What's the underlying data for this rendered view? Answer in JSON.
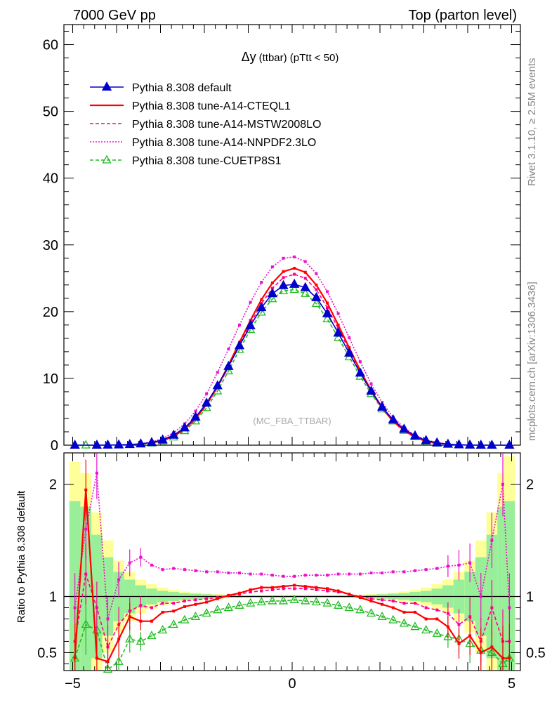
{
  "header": {
    "left": "7000 GeV pp",
    "right": "Top (parton level)"
  },
  "side_labels": {
    "rivet": "Rivet 3.1.10, ≥ 2.5M events",
    "mcplots": "mcplots.cern.ch [arXiv:1306.3436]"
  },
  "chart_data": [
    {
      "type": "line",
      "title": "Δy (ttbar) (pTtt < 50)",
      "title_main": "Δy",
      "title_sub": "(ttbar) (pTtt < 50)",
      "watermark": "(MC_FBA_TTBAR)",
      "xlim": [
        -5.2,
        5.2
      ],
      "ylim": [
        0,
        63
      ],
      "xticks": [
        "−5",
        "0",
        "5"
      ],
      "yticks": [
        "0",
        "10",
        "20",
        "30",
        "40",
        "50",
        "60"
      ],
      "legend_position": "top-left",
      "series": [
        {
          "name": "Pythia 8.308 default",
          "color": "#0000cc",
          "marker": "triangle-filled",
          "x": [
            -4.95,
            -4.45,
            -4.2,
            -3.95,
            -3.7,
            -3.45,
            -3.2,
            -2.95,
            -2.7,
            -2.45,
            -2.2,
            -1.95,
            -1.7,
            -1.45,
            -1.2,
            -0.95,
            -0.7,
            -0.45,
            -0.2,
            0.05,
            0.3,
            0.55,
            0.8,
            1.05,
            1.3,
            1.55,
            1.8,
            2.05,
            2.3,
            2.55,
            2.8,
            3.05,
            3.3,
            3.55,
            3.8,
            4.05,
            4.3,
            4.55,
            4.95
          ],
          "values": [
            0.0,
            0.0,
            0.02,
            0.05,
            0.1,
            0.2,
            0.4,
            0.8,
            1.5,
            2.6,
            4.2,
            6.3,
            8.9,
            11.8,
            14.9,
            17.9,
            20.6,
            22.7,
            23.9,
            24.1,
            23.6,
            22.1,
            19.7,
            16.8,
            13.8,
            10.8,
            8.1,
            5.7,
            3.8,
            2.4,
            1.4,
            0.7,
            0.35,
            0.15,
            0.06,
            0.02,
            0.0,
            0.0,
            0.0
          ]
        },
        {
          "name": "Pythia 8.308 tune-A14-CTEQL1",
          "color": "#ff0000",
          "marker": "none",
          "x": [
            -3.2,
            -2.95,
            -2.7,
            -2.45,
            -2.2,
            -1.95,
            -1.7,
            -1.45,
            -1.2,
            -0.95,
            -0.7,
            -0.45,
            -0.2,
            0.05,
            0.3,
            0.55,
            0.8,
            1.05,
            1.3,
            1.55,
            1.8,
            2.05,
            2.3,
            2.55,
            2.8,
            3.05,
            3.3
          ],
          "values": [
            0.35,
            0.7,
            1.35,
            2.4,
            4.0,
            6.1,
            8.8,
            12.0,
            15.4,
            18.7,
            21.8,
            24.3,
            26.0,
            26.5,
            25.9,
            24.0,
            21.3,
            18.0,
            14.6,
            11.2,
            8.2,
            5.6,
            3.6,
            2.2,
            1.2,
            0.6,
            0.28
          ]
        },
        {
          "name": "Pythia 8.308 tune-A14-MSTW2008LO",
          "color": "#ff0090",
          "marker": "none",
          "x": [
            -3.2,
            -2.95,
            -2.7,
            -2.45,
            -2.2,
            -1.95,
            -1.7,
            -1.45,
            -1.2,
            -0.95,
            -0.7,
            -0.45,
            -0.2,
            0.05,
            0.3,
            0.55,
            0.8,
            1.05,
            1.3,
            1.55,
            1.8,
            2.05,
            2.3,
            2.55,
            2.8,
            3.05,
            3.3
          ],
          "values": [
            0.3,
            0.65,
            1.3,
            2.35,
            3.9,
            6.0,
            8.6,
            11.7,
            15.0,
            18.2,
            21.2,
            23.5,
            25.1,
            25.6,
            25.0,
            23.3,
            20.6,
            17.5,
            14.2,
            10.9,
            8.0,
            5.5,
            3.5,
            2.1,
            1.15,
            0.55,
            0.25
          ]
        },
        {
          "name": "Pythia 8.308 tune-A14-NNPDF2.3LO",
          "color": "#ee11cc",
          "marker": "none",
          "x": [
            -3.45,
            -3.2,
            -2.95,
            -2.7,
            -2.45,
            -2.2,
            -1.95,
            -1.7,
            -1.45,
            -1.2,
            -0.95,
            -0.7,
            -0.45,
            -0.2,
            0.05,
            0.3,
            0.55,
            0.8,
            1.05,
            1.3,
            1.55,
            1.8,
            2.05,
            2.3,
            2.55,
            2.8,
            3.05,
            3.3,
            3.55
          ],
          "values": [
            0.22,
            0.5,
            1.0,
            1.85,
            3.2,
            5.1,
            7.7,
            10.9,
            14.4,
            18.0,
            21.4,
            24.4,
            26.7,
            28.0,
            28.2,
            27.5,
            25.7,
            23.0,
            19.7,
            16.1,
            12.5,
            9.2,
            6.4,
            4.2,
            2.6,
            1.5,
            0.8,
            0.4,
            0.18
          ]
        },
        {
          "name": "Pythia 8.308 tune-CUETP8S1",
          "color": "#22bb22",
          "marker": "triangle-open",
          "x": [
            -4.95,
            -4.7,
            -4.45,
            -4.2,
            -3.95,
            -3.7,
            -3.45,
            -3.2,
            -2.95,
            -2.7,
            -2.45,
            -2.2,
            -1.95,
            -1.7,
            -1.45,
            -1.2,
            -0.95,
            -0.7,
            -0.45,
            -0.2,
            0.05,
            0.3,
            0.55,
            0.8,
            1.05,
            1.3,
            1.55,
            1.8,
            2.05,
            2.3,
            2.55,
            2.8,
            3.05,
            3.3,
            3.55,
            3.8,
            4.05,
            4.3,
            4.55,
            4.95
          ],
          "values": [
            0.0,
            0.0,
            0.0,
            0.01,
            0.03,
            0.07,
            0.15,
            0.3,
            0.62,
            1.2,
            2.15,
            3.6,
            5.6,
            8.1,
            11.1,
            14.3,
            17.3,
            19.9,
            21.9,
            23.1,
            23.3,
            22.7,
            21.2,
            18.9,
            16.1,
            13.2,
            10.3,
            7.7,
            5.4,
            3.6,
            2.2,
            1.25,
            0.6,
            0.28,
            0.12,
            0.05,
            0.02,
            0.0,
            0.0,
            0.0
          ]
        }
      ]
    },
    {
      "type": "line",
      "ylabel": "Ratio to Pythia 8.308 default",
      "xlim": [
        -5.2,
        5.2
      ],
      "ylim": [
        0.34,
        2.28
      ],
      "xticks": [
        "−5",
        "0",
        "5"
      ],
      "yticks": [
        "0.5",
        "1",
        "2"
      ],
      "series": [
        {
          "name": "Pythia 8.308 tune-A14-CTEQL1",
          "color": "#ff0000",
          "x": [
            -4.95,
            -4.7,
            -4.45,
            -4.2,
            -3.95,
            -3.7,
            -3.45,
            -3.2,
            -2.95,
            -2.7,
            -2.45,
            -2.2,
            -1.95,
            -1.7,
            -1.45,
            -1.2,
            -0.95,
            -0.7,
            -0.45,
            -0.2,
            0.05,
            0.3,
            0.55,
            0.8,
            1.05,
            1.3,
            1.55,
            1.8,
            2.05,
            2.3,
            2.55,
            2.8,
            3.05,
            3.3,
            3.55,
            3.8,
            4.05,
            4.3,
            4.55,
            4.8,
            4.95
          ],
          "values": [
            0.45,
            1.95,
            0.45,
            0.42,
            0.62,
            0.82,
            0.78,
            0.78,
            0.86,
            0.87,
            0.91,
            0.93,
            0.95,
            0.98,
            1.01,
            1.03,
            1.06,
            1.08,
            1.08,
            1.09,
            1.1,
            1.09,
            1.08,
            1.07,
            1.05,
            1.02,
            0.99,
            0.96,
            0.93,
            0.9,
            0.86,
            0.86,
            0.8,
            0.8,
            0.73,
            0.58,
            0.65,
            0.5,
            0.55,
            0.45,
            0.45
          ]
        },
        {
          "name": "Pythia 8.308 tune-A14-MSTW2008LO",
          "color": "#ff0090",
          "x": [
            -4.95,
            -4.7,
            -4.45,
            -4.2,
            -3.95,
            -3.7,
            -3.45,
            -3.2,
            -2.95,
            -2.7,
            -2.45,
            -2.2,
            -1.95,
            -1.7,
            -1.45,
            -1.2,
            -0.95,
            -0.7,
            -0.45,
            -0.2,
            0.05,
            0.3,
            0.55,
            0.8,
            1.05,
            1.3,
            1.55,
            1.8,
            2.05,
            2.3,
            2.55,
            2.8,
            3.05,
            3.3,
            3.55,
            3.8,
            4.05,
            4.3,
            4.55,
            4.8,
            4.95
          ],
          "values": [
            0.6,
            1.2,
            0.9,
            0.55,
            0.75,
            0.87,
            0.92,
            0.9,
            0.94,
            0.94,
            0.96,
            0.97,
            0.98,
            0.99,
            1.01,
            1.02,
            1.04,
            1.05,
            1.06,
            1.07,
            1.07,
            1.07,
            1.06,
            1.05,
            1.04,
            1.02,
            1.0,
            0.98,
            0.97,
            0.96,
            0.94,
            0.94,
            0.9,
            0.88,
            0.85,
            0.75,
            0.82,
            0.6,
            0.9,
            0.6,
            0.6
          ]
        },
        {
          "name": "Pythia 8.308 tune-A14-NNPDF2.3LO",
          "color": "#ee11cc",
          "x": [
            -4.95,
            -4.7,
            -4.45,
            -4.2,
            -3.95,
            -3.7,
            -3.45,
            -3.2,
            -2.95,
            -2.7,
            -2.45,
            -2.2,
            -1.95,
            -1.7,
            -1.45,
            -1.2,
            -0.95,
            -0.7,
            -0.45,
            -0.2,
            0.05,
            0.3,
            0.55,
            0.8,
            1.05,
            1.3,
            1.55,
            1.8,
            2.05,
            2.3,
            2.55,
            2.8,
            3.05,
            3.3,
            3.55,
            3.8,
            4.05,
            4.3,
            4.55,
            4.8,
            4.95
          ],
          "values": [
            0.9,
            1.6,
            2.1,
            0.8,
            1.15,
            1.3,
            1.35,
            1.28,
            1.24,
            1.25,
            1.24,
            1.23,
            1.22,
            1.22,
            1.21,
            1.21,
            1.2,
            1.2,
            1.19,
            1.18,
            1.18,
            1.19,
            1.19,
            1.19,
            1.2,
            1.2,
            1.2,
            1.21,
            1.21,
            1.22,
            1.22,
            1.23,
            1.24,
            1.25,
            1.27,
            1.28,
            1.3,
            1.0,
            1.5,
            2.0,
            0.9
          ]
        },
        {
          "name": "Pythia 8.308 tune-CUETP8S1",
          "color": "#22bb22",
          "x": [
            -4.95,
            -4.7,
            -4.45,
            -4.2,
            -3.95,
            -3.7,
            -3.45,
            -3.2,
            -2.95,
            -2.7,
            -2.45,
            -2.2,
            -1.95,
            -1.7,
            -1.45,
            -1.2,
            -0.95,
            -0.7,
            -0.45,
            -0.2,
            0.05,
            0.3,
            0.55,
            0.8,
            1.05,
            1.3,
            1.55,
            1.8,
            2.05,
            2.3,
            2.55,
            2.8,
            3.05,
            3.3,
            3.55,
            3.8,
            4.05,
            4.3,
            4.55,
            4.8,
            4.95
          ],
          "values": [
            0.45,
            0.75,
            0.7,
            0.35,
            0.42,
            0.62,
            0.6,
            0.65,
            0.7,
            0.75,
            0.79,
            0.82,
            0.85,
            0.88,
            0.9,
            0.92,
            0.94,
            0.95,
            0.96,
            0.96,
            0.97,
            0.96,
            0.95,
            0.94,
            0.92,
            0.9,
            0.88,
            0.85,
            0.82,
            0.79,
            0.76,
            0.73,
            0.7,
            0.67,
            0.64,
            0.62,
            0.58,
            0.52,
            0.5,
            0.4,
            0.45
          ]
        }
      ],
      "uncertainty_band_x": [
        -4.95,
        -4.7,
        -4.45,
        -4.2,
        -3.95,
        -3.7,
        -3.45,
        -3.2,
        -2.95,
        -2.7,
        -2.45,
        -2.2,
        -1.95,
        -1.7,
        -1.45,
        -1.2,
        -0.95,
        -0.7,
        -0.45,
        -0.2,
        0.05,
        0.3,
        0.55,
        0.8,
        1.05,
        1.3,
        1.55,
        1.8,
        2.05,
        2.3,
        2.55,
        2.8,
        3.05,
        3.3,
        3.55,
        3.8,
        4.05,
        4.3,
        4.55,
        4.8,
        4.95
      ],
      "uncertainty_stat": [
        0.85,
        0.8,
        0.55,
        0.35,
        0.22,
        0.15,
        0.1,
        0.07,
        0.05,
        0.04,
        0.03,
        0.025,
        0.02,
        0.015,
        0.01,
        0.01,
        0.01,
        0.01,
        0.01,
        0.01,
        0.01,
        0.01,
        0.01,
        0.01,
        0.01,
        0.01,
        0.01,
        0.015,
        0.02,
        0.025,
        0.03,
        0.04,
        0.05,
        0.07,
        0.1,
        0.15,
        0.22,
        0.35,
        0.55,
        0.8,
        0.85
      ],
      "uncertainty_total": [
        1.2,
        1.1,
        0.75,
        0.5,
        0.32,
        0.22,
        0.15,
        0.11,
        0.08,
        0.06,
        0.045,
        0.035,
        0.028,
        0.022,
        0.016,
        0.014,
        0.012,
        0.012,
        0.012,
        0.012,
        0.012,
        0.012,
        0.012,
        0.012,
        0.012,
        0.014,
        0.016,
        0.022,
        0.028,
        0.035,
        0.045,
        0.06,
        0.08,
        0.11,
        0.15,
        0.22,
        0.32,
        0.5,
        0.75,
        1.1,
        1.25
      ]
    }
  ]
}
